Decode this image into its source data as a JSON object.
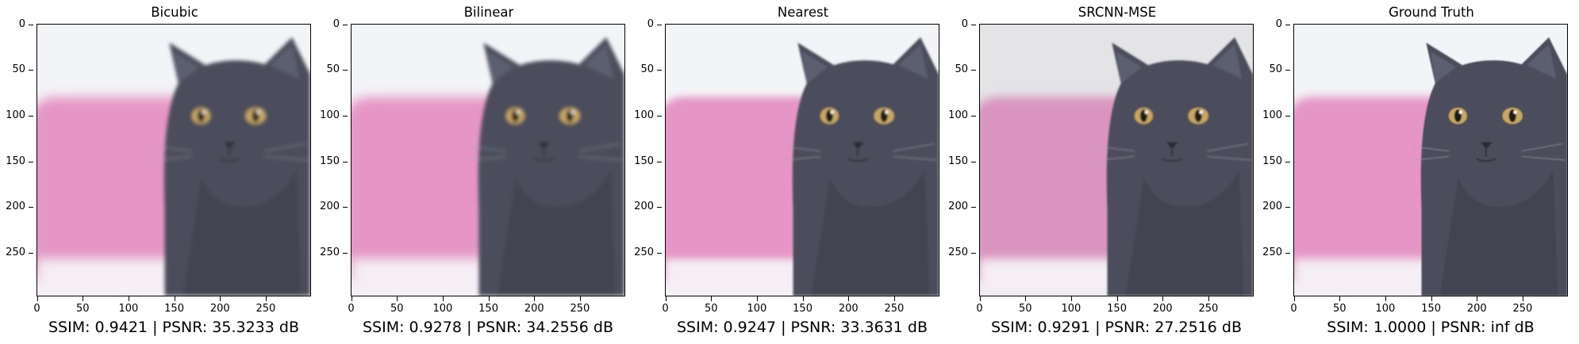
{
  "panels": [
    {
      "title": "Bicubic",
      "metrics": "SSIM: 0.9421 | PSNR: 35.3233 dB",
      "variant": "bicubic"
    },
    {
      "title": "Bilinear",
      "metrics": "SSIM: 0.9278 | PSNR: 34.2556 dB",
      "variant": "bilinear"
    },
    {
      "title": "Nearest",
      "metrics": "SSIM: 0.9247 | PSNR: 33.3631 dB",
      "variant": "nearest"
    },
    {
      "title": "SRCNN-MSE",
      "metrics": "SSIM: 0.9291 | PSNR: 27.2516 dB",
      "variant": "srcnn"
    },
    {
      "title": "Ground Truth",
      "metrics": "SSIM: 1.0000 | PSNR: inf dB",
      "variant": "gt"
    }
  ],
  "axes": {
    "y_ticks": [
      "0",
      "50",
      "100",
      "150",
      "200",
      "250"
    ],
    "x_ticks": [
      "0",
      "50",
      "100",
      "150",
      "200",
      "250"
    ],
    "range": [
      0,
      299
    ]
  },
  "image_subject": "gray-cat-with-pink-cushion",
  "colors": {
    "background": "#f3f4f7",
    "cushion": "#e596c6",
    "cat": "#4b4e5c",
    "eyes": "#c9a760"
  }
}
